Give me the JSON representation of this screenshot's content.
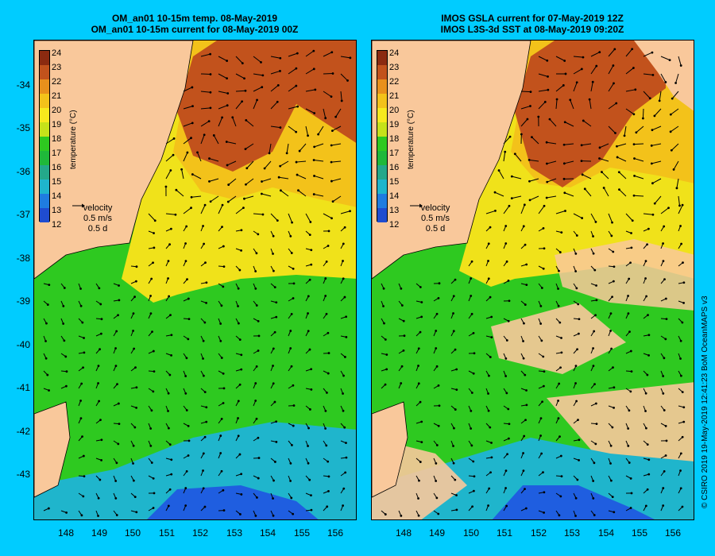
{
  "left_panel": {
    "title_line1": "OM_an01 10-15m temp. 08-May-2019",
    "title_line2": "OM_an01 10-15m current for 08-May-2019 00Z"
  },
  "right_panel": {
    "title_line1": "IMOS GSLA current for 07-May-2019 12Z",
    "title_line2": "IMOS L3S-3d SST at 08-May-2019 09:20Z"
  },
  "y_ticks": [
    "-34",
    "-35",
    "-36",
    "-37",
    "-38",
    "-39",
    "-40",
    "-41",
    "-42",
    "-43"
  ],
  "x_ticks": [
    "148",
    "149",
    "150",
    "151",
    "152",
    "153",
    "154",
    "155",
    "156"
  ],
  "colorbar": {
    "ticks": [
      "24",
      "23",
      "22",
      "21",
      "20",
      "19",
      "18",
      "17",
      "16",
      "15",
      "14",
      "13",
      "12"
    ],
    "colors": [
      "#8b2a10",
      "#c2521c",
      "#e8901c",
      "#f3c21a",
      "#f7ea1d",
      "#c6e21a",
      "#2ec920",
      "#1fb83a",
      "#24a88a",
      "#1fb5cc",
      "#1f7ce0",
      "#1f4cd0",
      "#1a2a9a"
    ],
    "unit_label": "temperature (°C)"
  },
  "velocity_legend": {
    "label": "velocity",
    "speed": "0.5 m/s",
    "duration": "0.5 d"
  },
  "copyright": "© CSIRO 2019   19-May-2019 12:41:23 BoM OceanMAPS v3",
  "map_colors": {
    "land": "#f9c89b",
    "warm": "#b5521a",
    "mid": "#f0e21a",
    "cool": "#2ec920",
    "cold": "#1fb5cc",
    "coldest": "#1f5ee0"
  }
}
